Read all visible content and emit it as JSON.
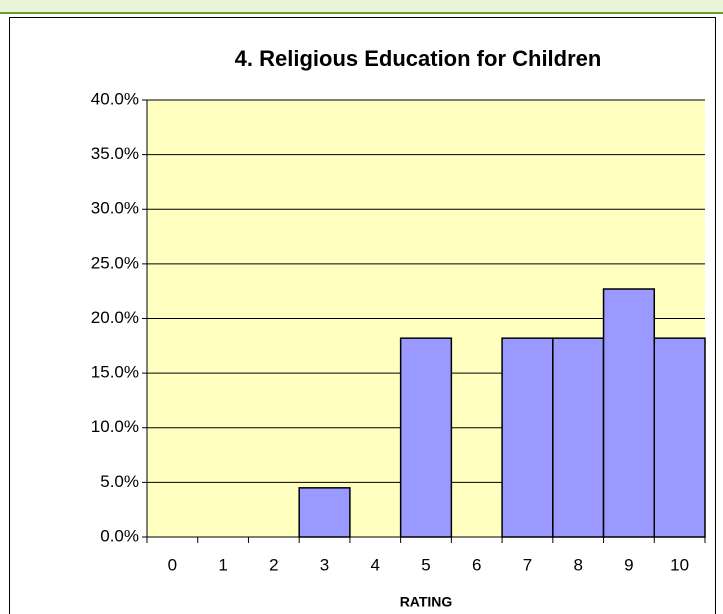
{
  "chart_data": {
    "type": "bar",
    "title": "4. Religious Education for Children",
    "x_label": "RATING",
    "categories": [
      "0",
      "1",
      "2",
      "3",
      "4",
      "5",
      "6",
      "7",
      "8",
      "9",
      "10"
    ],
    "values": [
      0,
      0,
      0,
      4.5,
      0,
      18.2,
      0,
      18.2,
      18.2,
      22.7,
      18.2
    ],
    "color": "#9999ff",
    "ylim": [
      0,
      40
    ],
    "yticks": [
      {
        "value": 0,
        "label": "0.0%"
      },
      {
        "value": 5,
        "label": "5.0%"
      },
      {
        "value": 10,
        "label": "10.0%"
      },
      {
        "value": 15,
        "label": "15.0%"
      },
      {
        "value": 20,
        "label": "20.0%"
      },
      {
        "value": 25,
        "label": "25.0%"
      },
      {
        "value": 30,
        "label": "30.0%"
      },
      {
        "value": 35,
        "label": "35.0%"
      },
      {
        "value": 40,
        "label": "40.0%"
      }
    ],
    "grid": true
  }
}
